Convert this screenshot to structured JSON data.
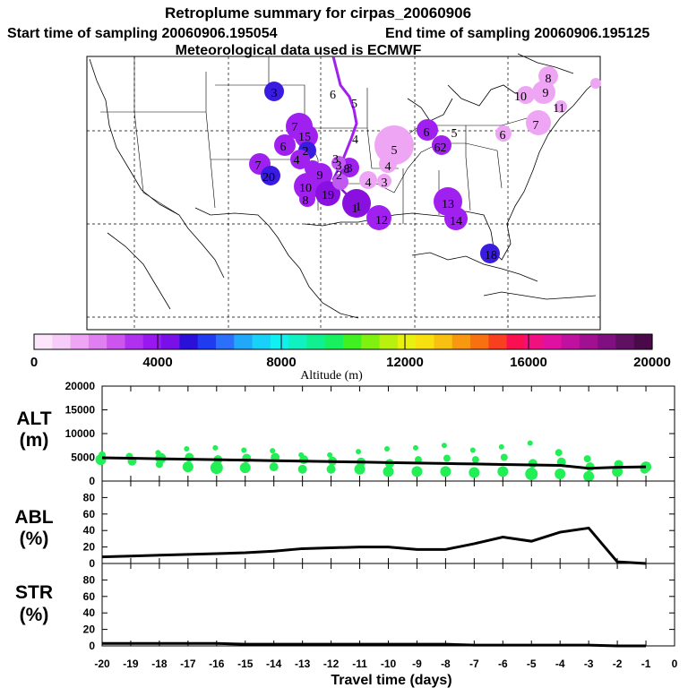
{
  "header": {
    "title": "Retroplume summary for cirpas_20060906",
    "start_label": "Start time of sampling 20060906.195054",
    "end_label": "End time of sampling 20060906.195125",
    "met_label": "Meteorological data used is ECMWF"
  },
  "colors": {
    "light_violet": "#eea6f4",
    "violet": "#c15af0",
    "purple": "#a020f0",
    "deep_purple": "#8a10e0",
    "blue": "#3a1be0",
    "green": "#22ee55",
    "line": "#000000"
  },
  "map": {
    "labels": [
      {
        "t": "8",
        "c": "#eea6f4"
      },
      {
        "t": "10",
        "c": "#eea6f4"
      },
      {
        "t": "9",
        "c": "#eea6f4"
      },
      {
        "t": "3",
        "c": "#3a1be0"
      },
      {
        "t": "6",
        "c": "#a020f0"
      },
      {
        "t": "5",
        "c": "#a020f0"
      },
      {
        "t": "7",
        "c": "#eea6f4"
      },
      {
        "t": "11",
        "c": "#eea6f4"
      },
      {
        "t": "7",
        "c": "#a020f0"
      },
      {
        "t": "15",
        "c": "#a020f0"
      },
      {
        "t": "6",
        "c": "#c15af0"
      },
      {
        "t": "5",
        "c": "#c15af0"
      },
      {
        "t": "4",
        "c": "#eea6f4"
      },
      {
        "t": "6",
        "c": "#eea6f4"
      },
      {
        "t": "6",
        "c": "#a020f0"
      },
      {
        "t": "2",
        "c": "#3a1be0"
      },
      {
        "t": "4",
        "c": "#a020f0"
      },
      {
        "t": "2",
        "c": "#a020f0"
      },
      {
        "t": "8",
        "c": "#a020f0"
      },
      {
        "t": "7",
        "c": "#a020f0"
      },
      {
        "t": "3",
        "c": "#a020f0"
      },
      {
        "t": "3",
        "c": "#c15af0"
      },
      {
        "t": "20",
        "c": "#3a1be0"
      },
      {
        "t": "9",
        "c": "#a020f0"
      },
      {
        "t": "4",
        "c": "#eea6f4"
      },
      {
        "t": "3",
        "c": "#eea6f4"
      },
      {
        "t": "10",
        "c": "#a020f0"
      },
      {
        "t": "8",
        "c": "#a020f0"
      },
      {
        "t": "19",
        "c": "#8a10e0"
      },
      {
        "t": "1",
        "c": "#8a10e0"
      },
      {
        "t": "13",
        "c": "#a020f0"
      },
      {
        "t": "12",
        "c": "#a020f0"
      },
      {
        "t": "14",
        "c": "#a020f0"
      },
      {
        "t": "18",
        "c": "#3a1be0"
      },
      {
        "t": "1",
        "c": "#a020f0"
      }
    ]
  },
  "colorbar": {
    "ticks": [
      "0",
      "4000",
      "8000",
      "12000",
      "16000",
      "20000"
    ],
    "label": "Altitude (m)",
    "colors": [
      "#fce6fc",
      "#f6ccf8",
      "#eea6f4",
      "#e080f0",
      "#cc55ee",
      "#b030f0",
      "#9a18f0",
      "#7a10e8",
      "#2a10d8",
      "#1f3cf0",
      "#2a70f8",
      "#22a8f8",
      "#18d0f8",
      "#10f0f0",
      "#10f0c0",
      "#10f090",
      "#18f060",
      "#40f020",
      "#80f010",
      "#b8f010",
      "#e8f010",
      "#f8e010",
      "#f8c010",
      "#f89810",
      "#f87010",
      "#f84020",
      "#f81050",
      "#f01080",
      "#e010a0",
      "#c010a0",
      "#a01090",
      "#801080",
      "#601060",
      "#4a0a4a"
    ]
  },
  "chart_data": [
    {
      "type": "scatter",
      "ylabel": "ALT\n(m)",
      "ylim": [
        0,
        20000
      ],
      "yticks": [
        "20000",
        "15000",
        "10000",
        "5000",
        "0"
      ],
      "xlim": [
        -20,
        0
      ],
      "median_line": {
        "x": [
          -20,
          -19,
          -18,
          -17,
          -16,
          -15,
          -14,
          -13,
          -12,
          -11,
          -10,
          -9,
          -8,
          -7,
          -6,
          -5,
          -4,
          -3,
          -2,
          -1
        ],
        "y": [
          4900,
          4800,
          4700,
          4600,
          4500,
          4400,
          4300,
          4200,
          4100,
          4000,
          3900,
          3800,
          3700,
          3600,
          3500,
          3400,
          3300,
          2700,
          2900,
          3000
        ]
      },
      "points": {
        "x": [
          -20,
          -20,
          -19,
          -19,
          -18,
          -18,
          -18,
          -17,
          -17,
          -17,
          -16,
          -16,
          -16,
          -15,
          -15,
          -15,
          -14,
          -14,
          -14,
          -13,
          -13,
          -13,
          -12,
          -12,
          -12,
          -11,
          -11,
          -11,
          -10,
          -10,
          -10,
          -9,
          -9,
          -9,
          -8,
          -8,
          -8,
          -7,
          -7,
          -7,
          -6,
          -6,
          -6,
          -5,
          -5,
          -5,
          -4,
          -4,
          -4,
          -3,
          -3,
          -3,
          -2,
          -2,
          -1,
          -1
        ],
        "y": [
          4500,
          5500,
          4200,
          5200,
          3500,
          4800,
          6000,
          3000,
          5000,
          6800,
          2800,
          4500,
          7000,
          2800,
          4800,
          6500,
          3000,
          5000,
          6400,
          2500,
          4500,
          5500,
          2500,
          4200,
          5500,
          2500,
          4000,
          6200,
          2000,
          3700,
          6800,
          2000,
          4500,
          7000,
          2000,
          4800,
          7500,
          1800,
          4500,
          6500,
          2000,
          5000,
          7200,
          1500,
          3700,
          8000,
          1500,
          4000,
          6000,
          1000,
          3000,
          4700,
          2000,
          3500,
          2500,
          3000
        ]
      }
    },
    {
      "type": "line",
      "ylabel": "ABL\n(%)",
      "ylim": [
        0,
        100
      ],
      "yticks": [
        "80",
        "60",
        "40",
        "20",
        "0"
      ],
      "x": [
        -20,
        -19,
        -18,
        -17,
        -16,
        -15,
        -14,
        -13,
        -12,
        -11,
        -10,
        -9,
        -8,
        -7,
        -6,
        -5,
        -4,
        -3,
        -2,
        -1
      ],
      "y": [
        8,
        9,
        10,
        11,
        12,
        13,
        15,
        18,
        19,
        20,
        20,
        17,
        17,
        24,
        32,
        27,
        38,
        43,
        2,
        0
      ]
    },
    {
      "type": "line",
      "ylabel": "STR\n(%)",
      "ylim": [
        0,
        100
      ],
      "yticks": [
        "80",
        "60",
        "40",
        "20",
        "0"
      ],
      "x": [
        -20,
        -19,
        -18,
        -17,
        -16,
        -15,
        -14,
        -13,
        -12,
        -11,
        -10,
        -9,
        -8,
        -7,
        -6,
        -5,
        -4,
        -3,
        -2,
        -1
      ],
      "y": [
        3,
        3,
        3,
        3,
        3,
        2,
        2,
        2,
        2,
        2,
        2,
        2,
        2,
        1,
        1,
        1,
        1,
        1,
        0,
        0
      ],
      "xlabel": "Travel time (days)",
      "xticks": [
        "-20",
        "-19",
        "-18",
        "-17",
        "-16",
        "-15",
        "-14",
        "-13",
        "-12",
        "-11",
        "-10",
        "-9",
        "-8",
        "-7",
        "-6",
        "-5",
        "-4",
        "-3",
        "-2",
        "-1",
        "0"
      ]
    }
  ]
}
